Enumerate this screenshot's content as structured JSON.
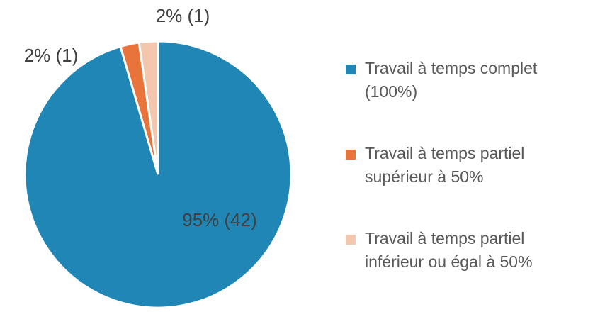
{
  "chart_data": {
    "type": "pie",
    "categories": [
      "Travail à temps complet (100%)",
      "Travail à temps partiel supérieur à 50%",
      "Travail à temps partiel inférieur ou égal à 50%"
    ],
    "values": [
      42,
      1,
      1
    ],
    "value_labels": [
      "95% (42)",
      "2% (1)",
      "2% (1)"
    ],
    "colors": [
      "#1f86b5",
      "#e8743b",
      "#f5c6ae"
    ]
  }
}
